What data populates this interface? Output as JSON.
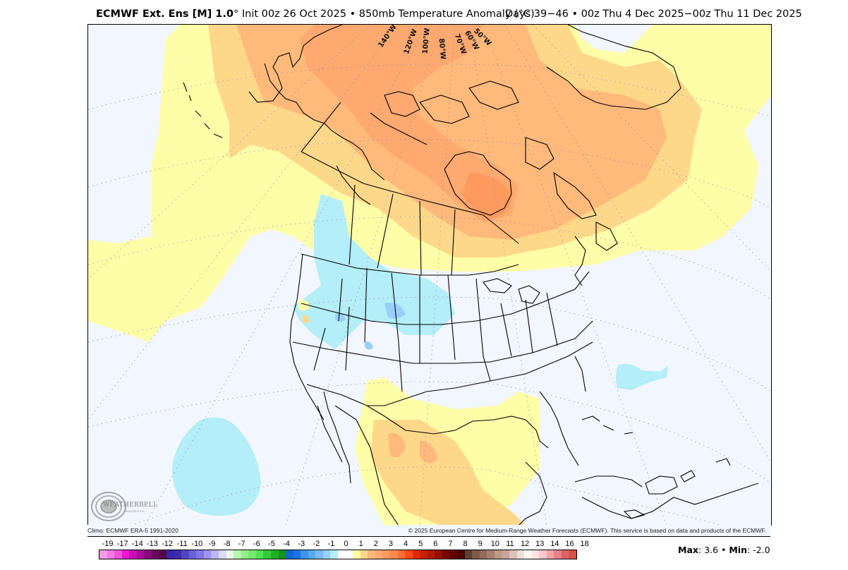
{
  "header": {
    "model_label": "ECMWF Ext. Ens [M] 1.0",
    "degree_symbol": "°",
    "init_text": " Init 00z 26 Oct 2025 • 850mb Temperature Anomaly (°C)",
    "valid_text": "Days 39−46 • 00z Thu 4 Dec 2025−00z Thu 11 Dec 2025"
  },
  "map": {
    "projection": "polar stereographic, North America",
    "meridian_labels": [
      "140°W",
      "120°W",
      "100°W",
      "80°W",
      "70°W",
      "60°W",
      "50°W"
    ],
    "background_color": "#f2f6fe",
    "anomaly_regions": [
      {
        "name": "canada-arctic-warm-core",
        "value_range": "3 to 4",
        "color": "#fea970"
      },
      {
        "name": "canada-warm",
        "value_range": "2 to 3",
        "color": "#feb97b"
      },
      {
        "name": "warm-ring",
        "value_range": "1 to 2",
        "color": "#fed88a"
      },
      {
        "name": "slight-warm",
        "value_range": "0 to 1",
        "color": "#fefea8"
      },
      {
        "name": "northern-plains-cool",
        "value_range": "-1 to 0",
        "color": "#b4eef8"
      },
      {
        "name": "cool-pockets",
        "value_range": "-2 to -1",
        "color": "#98d0fc"
      },
      {
        "name": "pacific-cool-patch",
        "value_range": "-1 to 0",
        "color": "#b4eef8"
      },
      {
        "name": "atlantic-cool-patch",
        "value_range": "-1 to 0",
        "color": "#b4eef8"
      },
      {
        "name": "mexico-warm",
        "value_range": "0 to 2",
        "color": "#fed88a"
      }
    ]
  },
  "logo": {
    "text": "WEATHERBELL",
    "subtext": "ANALYTICS LLC"
  },
  "credits": {
    "climo": "Climo: ECMWF ERA-5 1991-2020",
    "copyright": "© 2025 European Centre for Medium-Range Weather Forecasts (ECMWF). This service is based on data and products of the ECMWF."
  },
  "colorbar": {
    "labels": [
      "-19",
      "-17",
      "-14",
      "-13",
      "-12",
      "-11",
      "-10",
      "-9",
      "-8",
      "-7",
      "-6",
      "-5",
      "-4",
      "-3",
      "-2",
      "-1",
      "0",
      "1",
      "2",
      "3",
      "4",
      "5",
      "6",
      "7",
      "8",
      "9",
      "10",
      "11",
      "12",
      "13",
      "14",
      "16",
      "18"
    ],
    "colors": [
      "#f89ae8",
      "#f57ae2",
      "#f252dc",
      "#ec18d6",
      "#c80fb4",
      "#a90d98",
      "#8a0a7c",
      "#6d085f",
      "#54064a",
      "#3526a8",
      "#3c2ab0",
      "#5145c6",
      "#6b60d6",
      "#7f76e4",
      "#9d92f0",
      "#bcb5f6",
      "#dcdcfa",
      "#e8fbe6",
      "#b4f6ae",
      "#96ee8a",
      "#78e870",
      "#52e052",
      "#32cc3a",
      "#1eb024",
      "#10961a",
      "#1666d2",
      "#1e72e6",
      "#3c96f0",
      "#56aaf2",
      "#7abaf6",
      "#98d0fc",
      "#b4eef8",
      "#ffffff",
      "#ffffff",
      "#fefea0",
      "#fed88a",
      "#feb97b",
      "#fea970",
      "#fe9a5e",
      "#fe8a4e",
      "#fe6e32",
      "#fe4a1a",
      "#e22a08",
      "#c82002",
      "#b01a04",
      "#941004",
      "#7a0602",
      "#620200",
      "#4e0200",
      "#5a4238",
      "#7e5a48",
      "#946a5c",
      "#a87e74",
      "#b89a80",
      "#caa29a",
      "#dcc2bc",
      "#eee0da",
      "#fef6ee",
      "#fee2e6",
      "#fcc6ca",
      "#f4a2a6",
      "#e8808a",
      "#e06266",
      "#d85046"
    ]
  },
  "stats": {
    "max_label": "Max",
    "max_value": ": 3.6",
    "separator": " • ",
    "min_label": "Min",
    "min_value": ": -2.0"
  }
}
